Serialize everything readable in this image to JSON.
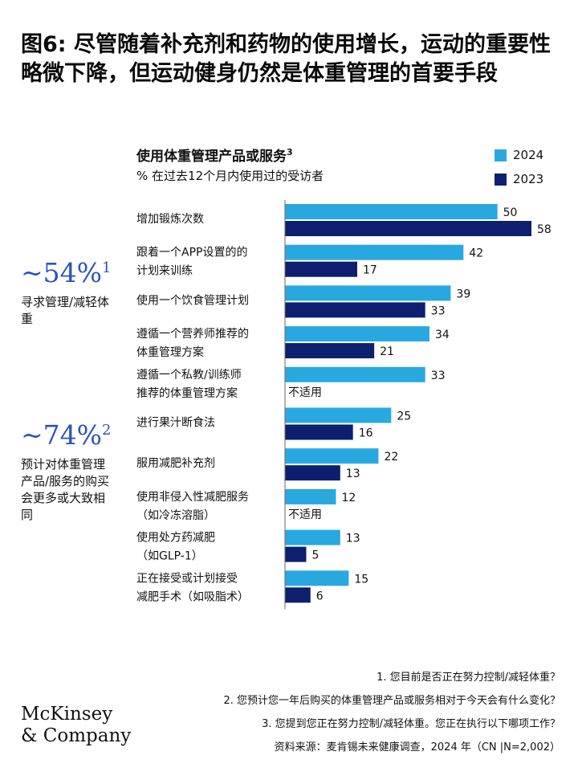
{
  "title": "图6: 尽管随着补充剂和药物的使用增长，运动的重要性略微下降，但运动健身仍然是体重管理的首要手段",
  "chart_heading": "使用体重管理产品或服务",
  "chart_heading_sup": "3",
  "chart_subtitle": "% 在过去12个月内使用过的受访者",
  "side_stats": [
    {
      "value": "~54%",
      "sup": "1",
      "desc": "寻求管理/减轻体重"
    },
    {
      "value": "~74%",
      "sup": "2",
      "desc": "预计对体重管理产品/服务的购买会更多或大致相同"
    }
  ],
  "notes": [
    "1.   您目前是否正在努力控制/减轻体重？",
    "2.   您预计您一年后购买的体重管理产品或服务相对于今天会有什么变化？",
    "3.   您提到您正在努力控制/减轻体重。您正在执行以下哪项工作？",
    "资料来源：麦肯锡未来健康调查，2024 年（CN |N=2,002）"
  ],
  "logo_line1": "McKinsey",
  "logo_line2": "& Company",
  "colors": {
    "series_2024": "#29a8e0",
    "series_2023": "#0d1f6e",
    "stat_blue": "#2a52be"
  },
  "chart_data": {
    "type": "bar",
    "orientation": "horizontal",
    "categories": [
      [
        "增加锻炼次数"
      ],
      [
        "跟着一个APP设置的的",
        "计划来训练"
      ],
      [
        "使用一个饮食管理计划"
      ],
      [
        "遵循一个营养师推荐的",
        "体重管理方案"
      ],
      [
        "遵循一个私教/训练师",
        "推荐的体重管理方案"
      ],
      [
        "进行果汁断食法"
      ],
      [
        "服用减肥补充剂"
      ],
      [
        "使用非侵入性减肥服务",
        "（如冷冻溶脂）"
      ],
      [
        "使用处方药减肥",
        "（如GLP-1）"
      ],
      [
        "正在接受或计划接受",
        "减肥手术（如吸脂术）"
      ]
    ],
    "series": [
      {
        "name": "2024",
        "values": [
          50,
          42,
          39,
          34,
          33,
          25,
          22,
          12,
          13,
          15
        ]
      },
      {
        "name": "2023",
        "values": [
          58,
          17,
          33,
          21,
          null,
          16,
          13,
          null,
          5,
          6
        ]
      }
    ],
    "na_label": "不适用",
    "xlim": [
      0,
      58
    ],
    "legend": "top-right"
  }
}
